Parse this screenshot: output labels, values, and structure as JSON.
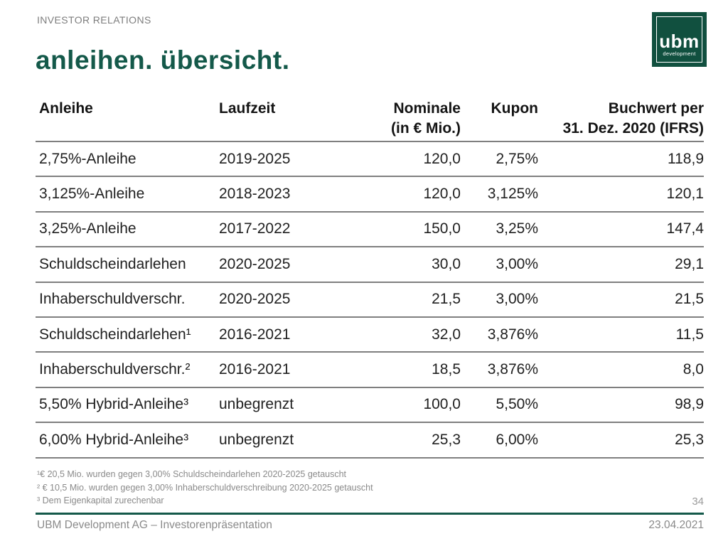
{
  "header": {
    "eyebrow": "INVESTOR RELATIONS",
    "title": "anleihen. übersicht."
  },
  "logo": {
    "text": "ubm",
    "subtext": "development"
  },
  "colors": {
    "brand_green": "#14594a",
    "logo_green": "#11503f",
    "row_line_gray": "#7f7f7f",
    "muted_gray": "#8a8a8a"
  },
  "table": {
    "columns": [
      {
        "key": "anleihe",
        "lines": [
          "Anleihe"
        ],
        "align": "left"
      },
      {
        "key": "laufzeit",
        "lines": [
          "Laufzeit"
        ],
        "align": "left"
      },
      {
        "key": "nominale",
        "lines": [
          "Nominale",
          "(in € Mio.)"
        ],
        "align": "right"
      },
      {
        "key": "kupon",
        "lines": [
          "Kupon"
        ],
        "align": "right"
      },
      {
        "key": "buchwert",
        "lines": [
          "Buchwert per",
          "31. Dez. 2020 (IFRS)"
        ],
        "align": "right"
      }
    ],
    "rows": [
      [
        "2,75%-Anleihe",
        "2019-2025",
        "120,0",
        "2,75%",
        "118,9"
      ],
      [
        "3,125%-Anleihe",
        "2018-2023",
        "120,0",
        "3,125%",
        "120,1"
      ],
      [
        "3,25%-Anleihe",
        "2017-2022",
        "150,0",
        "3,25%",
        "147,4"
      ],
      [
        "Schuldscheindarlehen",
        "2020-2025",
        "30,0",
        "3,00%",
        "29,1"
      ],
      [
        "Inhaberschuldverschr.",
        "2020-2025",
        "21,5",
        "3,00%",
        "21,5"
      ],
      [
        "Schuldscheindarlehen¹",
        "2016-2021",
        "32,0",
        "3,876%",
        "11,5"
      ],
      [
        "Inhaberschuldverschr.²",
        "2016-2021",
        "18,5",
        "3,876%",
        "8,0"
      ],
      [
        "5,50% Hybrid-Anleihe³",
        "unbegrenzt",
        "100,0",
        "5,50%",
        "98,9"
      ],
      [
        "6,00% Hybrid-Anleihe³",
        "unbegrenzt",
        "25,3",
        "6,00%",
        "25,3"
      ]
    ]
  },
  "footnotes": [
    "¹€ 20,5 Mio. wurden gegen 3,00% Schuldscheindarlehen 2020-2025 getauscht",
    "² € 10,5 Mio. wurden gegen 3,00% Inhaberschuldverschreibung 2020-2025 getauscht",
    "³ Dem Eigenkapital zurechenbar"
  ],
  "footer": {
    "page_number": "34",
    "left": "UBM Development AG – Investorenpräsentation",
    "right": "23.04.2021"
  }
}
